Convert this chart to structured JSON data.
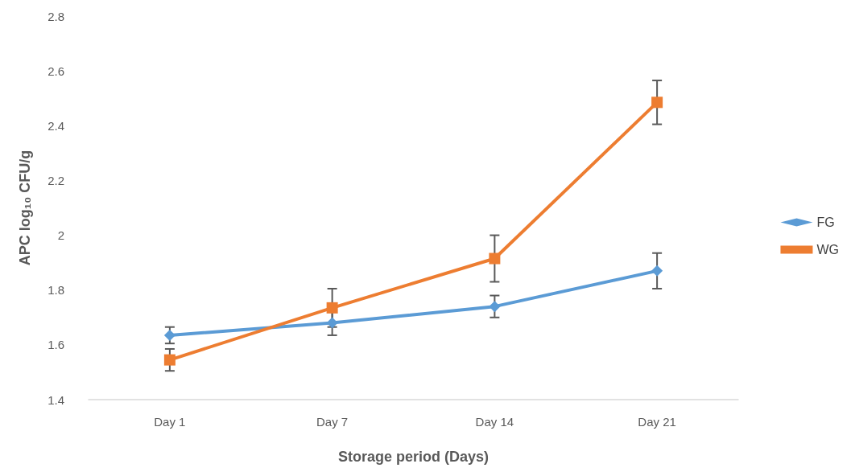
{
  "chart_data": {
    "type": "line",
    "xlabel": "Storage period (Days)",
    "ylabel": "APC log₁₀ CFU/g",
    "categories": [
      "Day 1",
      "Day 7",
      "Day 14",
      "Day 21"
    ],
    "series": [
      {
        "name": "FG",
        "color": "#5b9bd5",
        "marker": "diamond",
        "values": [
          1.635,
          1.68,
          1.74,
          1.87
        ],
        "errors": [
          0.03,
          0.045,
          0.04,
          0.065
        ]
      },
      {
        "name": "WG",
        "color": "#ed7d31",
        "marker": "square",
        "values": [
          1.545,
          1.735,
          1.915,
          2.485
        ],
        "errors": [
          0.04,
          0.07,
          0.085,
          0.08
        ]
      }
    ],
    "ylim": [
      1.4,
      2.8
    ],
    "yticks": [
      1.4,
      1.6,
      1.8,
      2,
      2.2,
      2.4,
      2.6,
      2.8
    ],
    "grid": false,
    "legend": "right",
    "line_style": "solid"
  }
}
